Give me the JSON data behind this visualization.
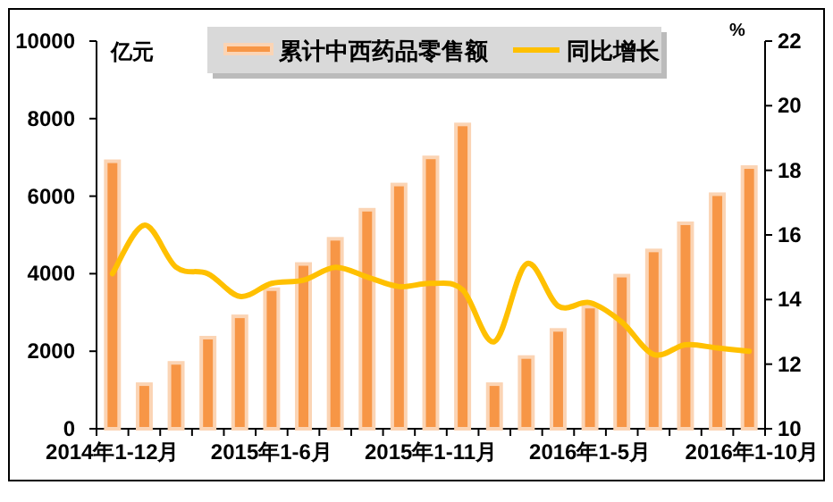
{
  "chart_data": {
    "type": "bar",
    "ylabel": "亿元",
    "y2label": "%",
    "categories": [
      "2014年1-12月",
      null,
      null,
      null,
      null,
      "2015年1-6月",
      null,
      null,
      null,
      null,
      "2015年1-11月",
      null,
      null,
      null,
      null,
      "2016年1-5月",
      null,
      null,
      null,
      null,
      "2016年1-10月"
    ],
    "series": [
      {
        "name": "累计中西药品零售额",
        "color": "#f79646",
        "values": [
          6900,
          1150,
          1700,
          2350,
          2900,
          3600,
          4250,
          4900,
          5650,
          6300,
          7000,
          7850,
          1150,
          1850,
          2550,
          3150,
          3950,
          4600,
          5300,
          6050,
          6750
        ]
      },
      {
        "name": "同比增长",
        "type": "line",
        "axis": "y2",
        "color": "#ffc000",
        "values": [
          14.8,
          16.3,
          15.0,
          14.8,
          14.1,
          14.5,
          14.6,
          15.0,
          14.7,
          14.4,
          14.5,
          14.3,
          12.7,
          15.1,
          13.8,
          13.9,
          13.3,
          12.3,
          12.6,
          12.5,
          12.4
        ]
      }
    ],
    "ylim": [
      0,
      10000
    ],
    "yticks": [
      0,
      2000,
      4000,
      6000,
      8000,
      10000
    ],
    "y2lim": [
      10,
      22
    ],
    "y2ticks": [
      10,
      12,
      14,
      16,
      18,
      20,
      22
    ],
    "legend": "top"
  }
}
